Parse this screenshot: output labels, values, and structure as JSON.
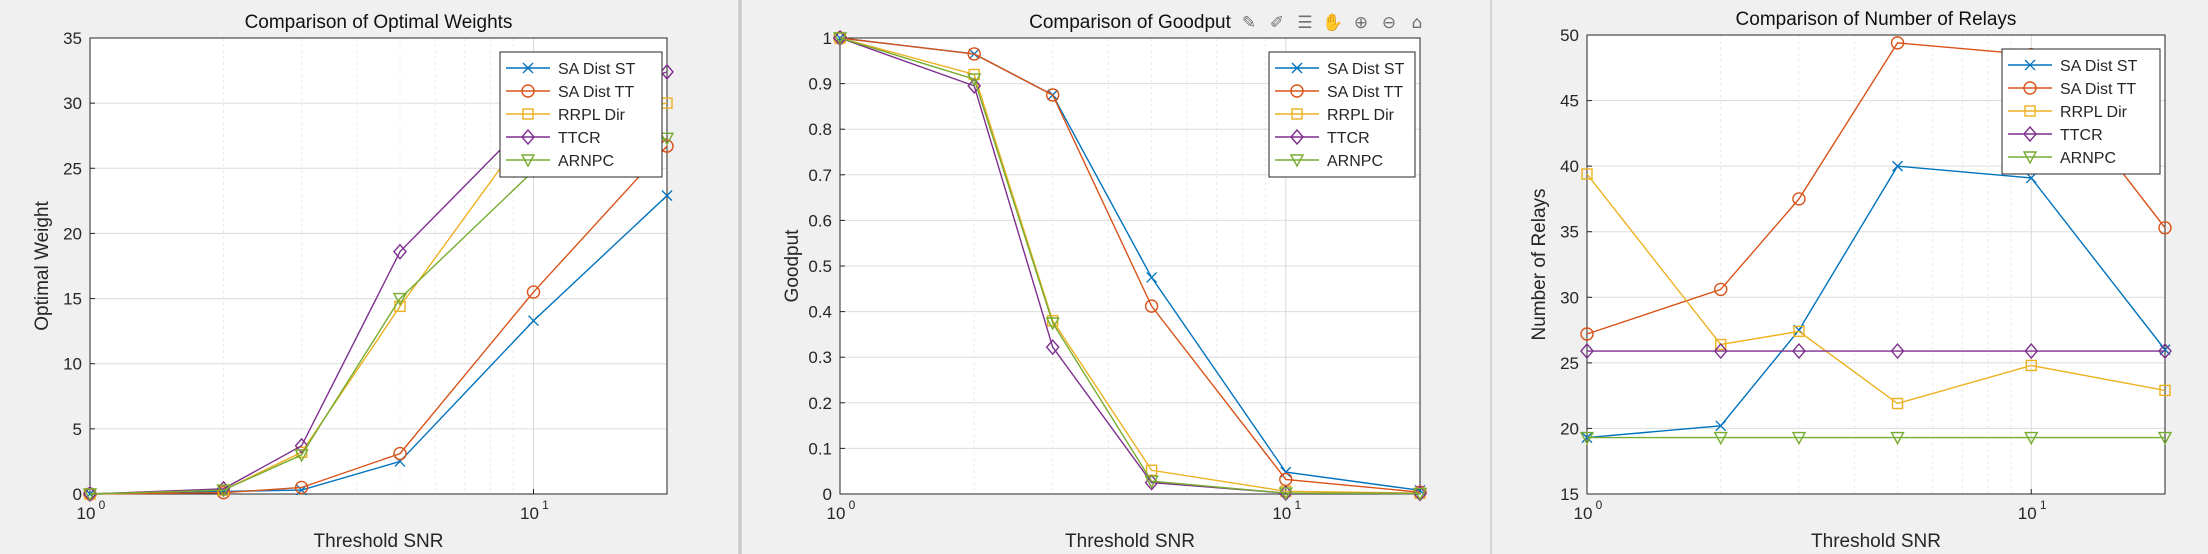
{
  "colors": {
    "SA Dist ST": "#0072BD",
    "SA Dist TT": "#D95319",
    "RRPL Dir": "#EDB120",
    "TTCR": "#7E2F8E",
    "ARNPC": "#77AC30",
    "axes_bg": "#ffffff",
    "figure_bg": "#f0f0f0",
    "grid": "#dcdcdc"
  },
  "toolbar": {
    "icons": [
      "edit-plot-icon",
      "brush-icon",
      "data-tips-icon",
      "pan-hand-icon",
      "zoom-in-icon",
      "zoom-out-icon",
      "home-icon"
    ]
  },
  "chart_data": [
    {
      "type": "line",
      "title": "Comparison of Optimal Weights",
      "xlabel": "Threshold SNR",
      "ylabel": "Optimal Weight",
      "xscale": "log",
      "xlim": [
        1,
        20
      ],
      "ylim": [
        0,
        35
      ],
      "yticks": [
        0,
        5,
        10,
        15,
        20,
        25,
        30,
        35
      ],
      "xtick_labels": [
        {
          "base": "10",
          "exp": "0",
          "value": 1
        },
        {
          "base": "10",
          "exp": "1",
          "value": 10
        }
      ],
      "grid": true,
      "legend_position": "top-right",
      "x": [
        1,
        2,
        3,
        5,
        10,
        20
      ],
      "series": [
        {
          "name": "SA Dist ST",
          "marker": "x",
          "values": [
            0,
            0.2,
            0.3,
            2.5,
            13.3,
            22.9
          ]
        },
        {
          "name": "SA Dist TT",
          "marker": "o",
          "values": [
            0,
            0.1,
            0.5,
            3.1,
            15.5,
            26.7
          ]
        },
        {
          "name": "RRPL Dir",
          "marker": "s",
          "values": [
            0,
            0.3,
            3.2,
            14.4,
            28.5,
            30.0
          ]
        },
        {
          "name": "TTCR",
          "marker": "d",
          "values": [
            0,
            0.4,
            3.7,
            18.6,
            29.0,
            32.4
          ]
        },
        {
          "name": "ARNPC",
          "marker": "v",
          "values": [
            0,
            0.3,
            3.0,
            15.0,
            24.8,
            27.3
          ]
        }
      ]
    },
    {
      "type": "line",
      "title": "Comparison of Goodput",
      "xlabel": "Threshold SNR",
      "ylabel": "Goodput",
      "xscale": "log",
      "xlim": [
        1,
        20
      ],
      "ylim": [
        0,
        1
      ],
      "yticks": [
        0,
        0.1,
        0.2,
        0.3,
        0.4,
        0.5,
        0.6,
        0.7,
        0.8,
        0.9,
        1
      ],
      "xtick_labels": [
        {
          "base": "10",
          "exp": "0",
          "value": 1
        },
        {
          "base": "10",
          "exp": "1",
          "value": 10
        }
      ],
      "grid": true,
      "legend_position": "top-right",
      "x": [
        1,
        2,
        3,
        5,
        10,
        20
      ],
      "series": [
        {
          "name": "SA Dist ST",
          "marker": "x",
          "values": [
            1.0,
            0.965,
            0.875,
            0.475,
            0.048,
            0.008
          ]
        },
        {
          "name": "SA Dist TT",
          "marker": "o",
          "values": [
            1.0,
            0.965,
            0.875,
            0.412,
            0.032,
            0.004
          ]
        },
        {
          "name": "RRPL Dir",
          "marker": "s",
          "values": [
            1.0,
            0.92,
            0.38,
            0.052,
            0.006,
            0.002
          ]
        },
        {
          "name": "TTCR",
          "marker": "d",
          "values": [
            1.0,
            0.895,
            0.322,
            0.025,
            0.002,
            0.001
          ]
        },
        {
          "name": "ARNPC",
          "marker": "v",
          "values": [
            1.0,
            0.91,
            0.375,
            0.028,
            0.002,
            0.001
          ]
        }
      ]
    },
    {
      "type": "line",
      "title": "Comparison of Number of Relays",
      "xlabel": "Threshold SNR",
      "ylabel": "Number of Relays",
      "xscale": "log",
      "xlim": [
        1,
        20
      ],
      "ylim": [
        15,
        50
      ],
      "yticks": [
        15,
        20,
        25,
        30,
        35,
        40,
        45,
        50
      ],
      "xtick_labels": [
        {
          "base": "10",
          "exp": "0",
          "value": 1
        },
        {
          "base": "10",
          "exp": "1",
          "value": 10
        }
      ],
      "grid": true,
      "legend_position": "top-right",
      "x": [
        1,
        2,
        3,
        5,
        10,
        20
      ],
      "series": [
        {
          "name": "SA Dist ST",
          "marker": "x",
          "values": [
            19.3,
            20.2,
            27.5,
            40.0,
            39.1,
            26.0
          ]
        },
        {
          "name": "SA Dist TT",
          "marker": "o",
          "values": [
            27.2,
            30.6,
            37.5,
            49.4,
            48.5,
            35.3
          ]
        },
        {
          "name": "RRPL Dir",
          "marker": "s",
          "values": [
            39.4,
            26.4,
            27.4,
            21.9,
            24.8,
            22.9
          ]
        },
        {
          "name": "TTCR",
          "marker": "d",
          "values": [
            25.9,
            25.9,
            25.9,
            25.9,
            25.9,
            25.9
          ]
        },
        {
          "name": "ARNPC",
          "marker": "v",
          "values": [
            19.3,
            19.3,
            19.3,
            19.3,
            19.3,
            19.3
          ]
        }
      ]
    }
  ]
}
